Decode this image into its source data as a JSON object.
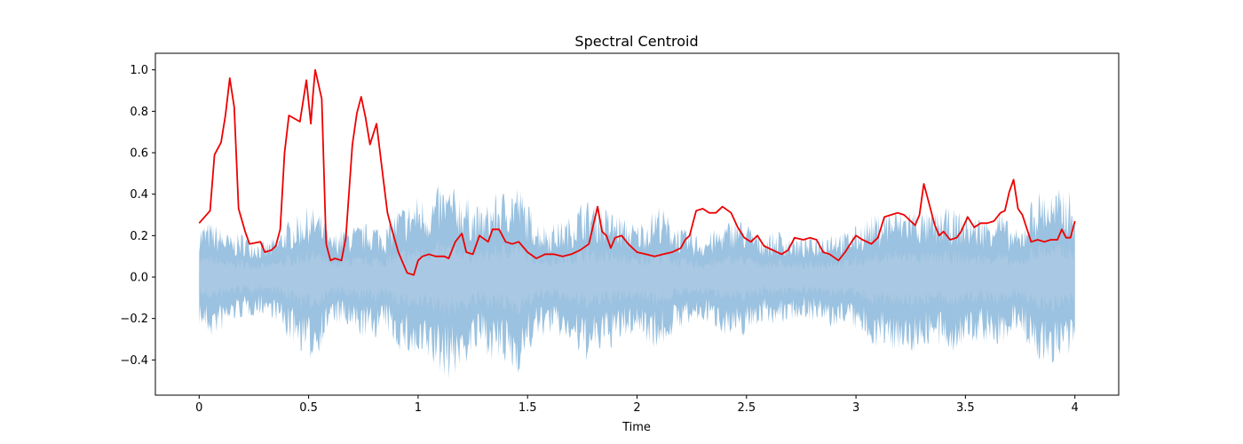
{
  "chart_data": {
    "type": "line",
    "title": "Spectral Centroid",
    "xlabel": "Time",
    "ylabel": "",
    "xlim": [
      -0.2,
      4.2
    ],
    "ylim": [
      -0.57,
      1.08
    ],
    "xticks": [
      0,
      0.5,
      1,
      1.5,
      2,
      2.5,
      3,
      3.5,
      4
    ],
    "xtick_labels": [
      "0",
      "0.5",
      "1",
      "1.5",
      "2",
      "2.5",
      "3",
      "3.5",
      "4"
    ],
    "yticks": [
      -0.4,
      -0.2,
      0.0,
      0.2,
      0.4,
      0.6,
      0.8,
      1.0
    ],
    "ytick_labels": [
      "−0.4",
      "−0.2",
      "0.0",
      "0.2",
      "0.4",
      "0.6",
      "0.8",
      "1.0"
    ],
    "grid": false,
    "colors": {
      "centroid": "#ee0000",
      "waveform": "#7aaed6",
      "waveform_core": "#a9c8e3"
    },
    "waveform": {
      "x": [
        0,
        0.05,
        0.1,
        0.15,
        0.2,
        0.25,
        0.3,
        0.35,
        0.4,
        0.45,
        0.5,
        0.55,
        0.6,
        0.65,
        0.7,
        0.75,
        0.8,
        0.85,
        0.9,
        0.95,
        1.0,
        1.05,
        1.1,
        1.15,
        1.2,
        1.25,
        1.3,
        1.35,
        1.4,
        1.45,
        1.5,
        1.55,
        1.6,
        1.65,
        1.7,
        1.75,
        1.8,
        1.85,
        1.9,
        1.95,
        2.0,
        2.05,
        2.1,
        2.15,
        2.2,
        2.25,
        2.3,
        2.35,
        2.4,
        2.45,
        2.5,
        2.55,
        2.6,
        2.65,
        2.7,
        2.75,
        2.8,
        2.85,
        2.9,
        2.95,
        3.0,
        3.05,
        3.1,
        3.15,
        3.2,
        3.25,
        3.3,
        3.35,
        3.4,
        3.45,
        3.5,
        3.55,
        3.6,
        3.65,
        3.7,
        3.75,
        3.8,
        3.85,
        3.9,
        3.95,
        4.0
      ],
      "upper": [
        0.26,
        0.27,
        0.24,
        0.2,
        0.22,
        0.19,
        0.17,
        0.2,
        0.27,
        0.3,
        0.35,
        0.32,
        0.2,
        0.24,
        0.25,
        0.26,
        0.27,
        0.24,
        0.34,
        0.36,
        0.4,
        0.38,
        0.45,
        0.44,
        0.42,
        0.36,
        0.34,
        0.4,
        0.43,
        0.47,
        0.36,
        0.28,
        0.26,
        0.27,
        0.3,
        0.38,
        0.37,
        0.34,
        0.32,
        0.28,
        0.26,
        0.3,
        0.36,
        0.29,
        0.24,
        0.22,
        0.2,
        0.23,
        0.26,
        0.3,
        0.27,
        0.22,
        0.21,
        0.23,
        0.2,
        0.19,
        0.2,
        0.22,
        0.24,
        0.22,
        0.25,
        0.29,
        0.31,
        0.34,
        0.33,
        0.35,
        0.32,
        0.31,
        0.34,
        0.33,
        0.31,
        0.3,
        0.3,
        0.35,
        0.26,
        0.22,
        0.38,
        0.44,
        0.41,
        0.44,
        0.4
      ],
      "lower": [
        -0.24,
        -0.3,
        -0.27,
        -0.22,
        -0.2,
        -0.19,
        -0.18,
        -0.21,
        -0.3,
        -0.34,
        -0.42,
        -0.36,
        -0.23,
        -0.24,
        -0.28,
        -0.3,
        -0.3,
        -0.26,
        -0.35,
        -0.38,
        -0.44,
        -0.42,
        -0.48,
        -0.5,
        -0.45,
        -0.38,
        -0.36,
        -0.42,
        -0.45,
        -0.48,
        -0.38,
        -0.3,
        -0.28,
        -0.3,
        -0.33,
        -0.42,
        -0.4,
        -0.36,
        -0.34,
        -0.3,
        -0.27,
        -0.32,
        -0.36,
        -0.3,
        -0.25,
        -0.24,
        -0.22,
        -0.24,
        -0.28,
        -0.32,
        -0.28,
        -0.23,
        -0.22,
        -0.24,
        -0.21,
        -0.2,
        -0.21,
        -0.24,
        -0.26,
        -0.22,
        -0.27,
        -0.32,
        -0.34,
        -0.36,
        -0.35,
        -0.38,
        -0.34,
        -0.33,
        -0.38,
        -0.36,
        -0.34,
        -0.32,
        -0.32,
        -0.36,
        -0.3,
        -0.24,
        -0.4,
        -0.43,
        -0.42,
        -0.44,
        -0.4
      ]
    },
    "series": [
      {
        "x": [
          0,
          0.05,
          0.07,
          0.1,
          0.12,
          0.14,
          0.16,
          0.18,
          0.21,
          0.23,
          0.28,
          0.3,
          0.33,
          0.35,
          0.37,
          0.39,
          0.41,
          0.46,
          0.49,
          0.51,
          0.52,
          0.53,
          0.56,
          0.58,
          0.6,
          0.62,
          0.65,
          0.67,
          0.7,
          0.72,
          0.74,
          0.76,
          0.78,
          0.81,
          0.84,
          0.86,
          0.88,
          0.91,
          0.93,
          0.95,
          0.98,
          1.0,
          1.02,
          1.05,
          1.08,
          1.1,
          1.12,
          1.14,
          1.17,
          1.2,
          1.22,
          1.25,
          1.28,
          1.32,
          1.34,
          1.37,
          1.4,
          1.43,
          1.46,
          1.5,
          1.54,
          1.58,
          1.62,
          1.66,
          1.7,
          1.74,
          1.78,
          1.82,
          1.84,
          1.86,
          1.88,
          1.9,
          1.93,
          1.96,
          2.0,
          2.04,
          2.08,
          2.12,
          2.16,
          2.2,
          2.22,
          2.24,
          2.27,
          2.3,
          2.33,
          2.36,
          2.39,
          2.43,
          2.46,
          2.49,
          2.52,
          2.55,
          2.58,
          2.62,
          2.66,
          2.69,
          2.72,
          2.76,
          2.79,
          2.82,
          2.85,
          2.88,
          2.92,
          2.95,
          2.98,
          3.0,
          3.03,
          3.07,
          3.1,
          3.13,
          3.16,
          3.19,
          3.22,
          3.25,
          3.27,
          3.29,
          3.31,
          3.33,
          3.36,
          3.38,
          3.4,
          3.43,
          3.46,
          3.48,
          3.51,
          3.54,
          3.57,
          3.6,
          3.63,
          3.66,
          3.68,
          3.7,
          3.72,
          3.74,
          3.76,
          3.8,
          3.83,
          3.86,
          3.89,
          3.92,
          3.94,
          3.96,
          3.98,
          4.0
        ],
        "y": [
          0.26,
          0.32,
          0.59,
          0.65,
          0.78,
          0.96,
          0.82,
          0.33,
          0.22,
          0.16,
          0.17,
          0.12,
          0.13,
          0.15,
          0.23,
          0.6,
          0.78,
          0.75,
          0.95,
          0.74,
          0.88,
          1.0,
          0.86,
          0.16,
          0.08,
          0.09,
          0.08,
          0.19,
          0.64,
          0.79,
          0.87,
          0.77,
          0.64,
          0.74,
          0.48,
          0.31,
          0.23,
          0.12,
          0.07,
          0.02,
          0.01,
          0.08,
          0.1,
          0.11,
          0.1,
          0.1,
          0.1,
          0.09,
          0.17,
          0.21,
          0.12,
          0.11,
          0.2,
          0.17,
          0.23,
          0.23,
          0.17,
          0.16,
          0.17,
          0.12,
          0.09,
          0.11,
          0.11,
          0.1,
          0.11,
          0.13,
          0.16,
          0.34,
          0.22,
          0.2,
          0.14,
          0.19,
          0.2,
          0.16,
          0.12,
          0.11,
          0.1,
          0.11,
          0.12,
          0.14,
          0.18,
          0.2,
          0.32,
          0.33,
          0.31,
          0.31,
          0.34,
          0.31,
          0.24,
          0.19,
          0.17,
          0.2,
          0.15,
          0.13,
          0.11,
          0.13,
          0.19,
          0.18,
          0.19,
          0.18,
          0.12,
          0.11,
          0.08,
          0.12,
          0.17,
          0.2,
          0.18,
          0.16,
          0.19,
          0.29,
          0.3,
          0.31,
          0.3,
          0.27,
          0.25,
          0.3,
          0.45,
          0.37,
          0.25,
          0.2,
          0.22,
          0.18,
          0.19,
          0.22,
          0.29,
          0.24,
          0.26,
          0.26,
          0.27,
          0.31,
          0.32,
          0.41,
          0.47,
          0.33,
          0.3,
          0.17,
          0.18,
          0.17,
          0.18,
          0.18,
          0.23,
          0.19,
          0.19,
          0.27
        ]
      }
    ]
  }
}
